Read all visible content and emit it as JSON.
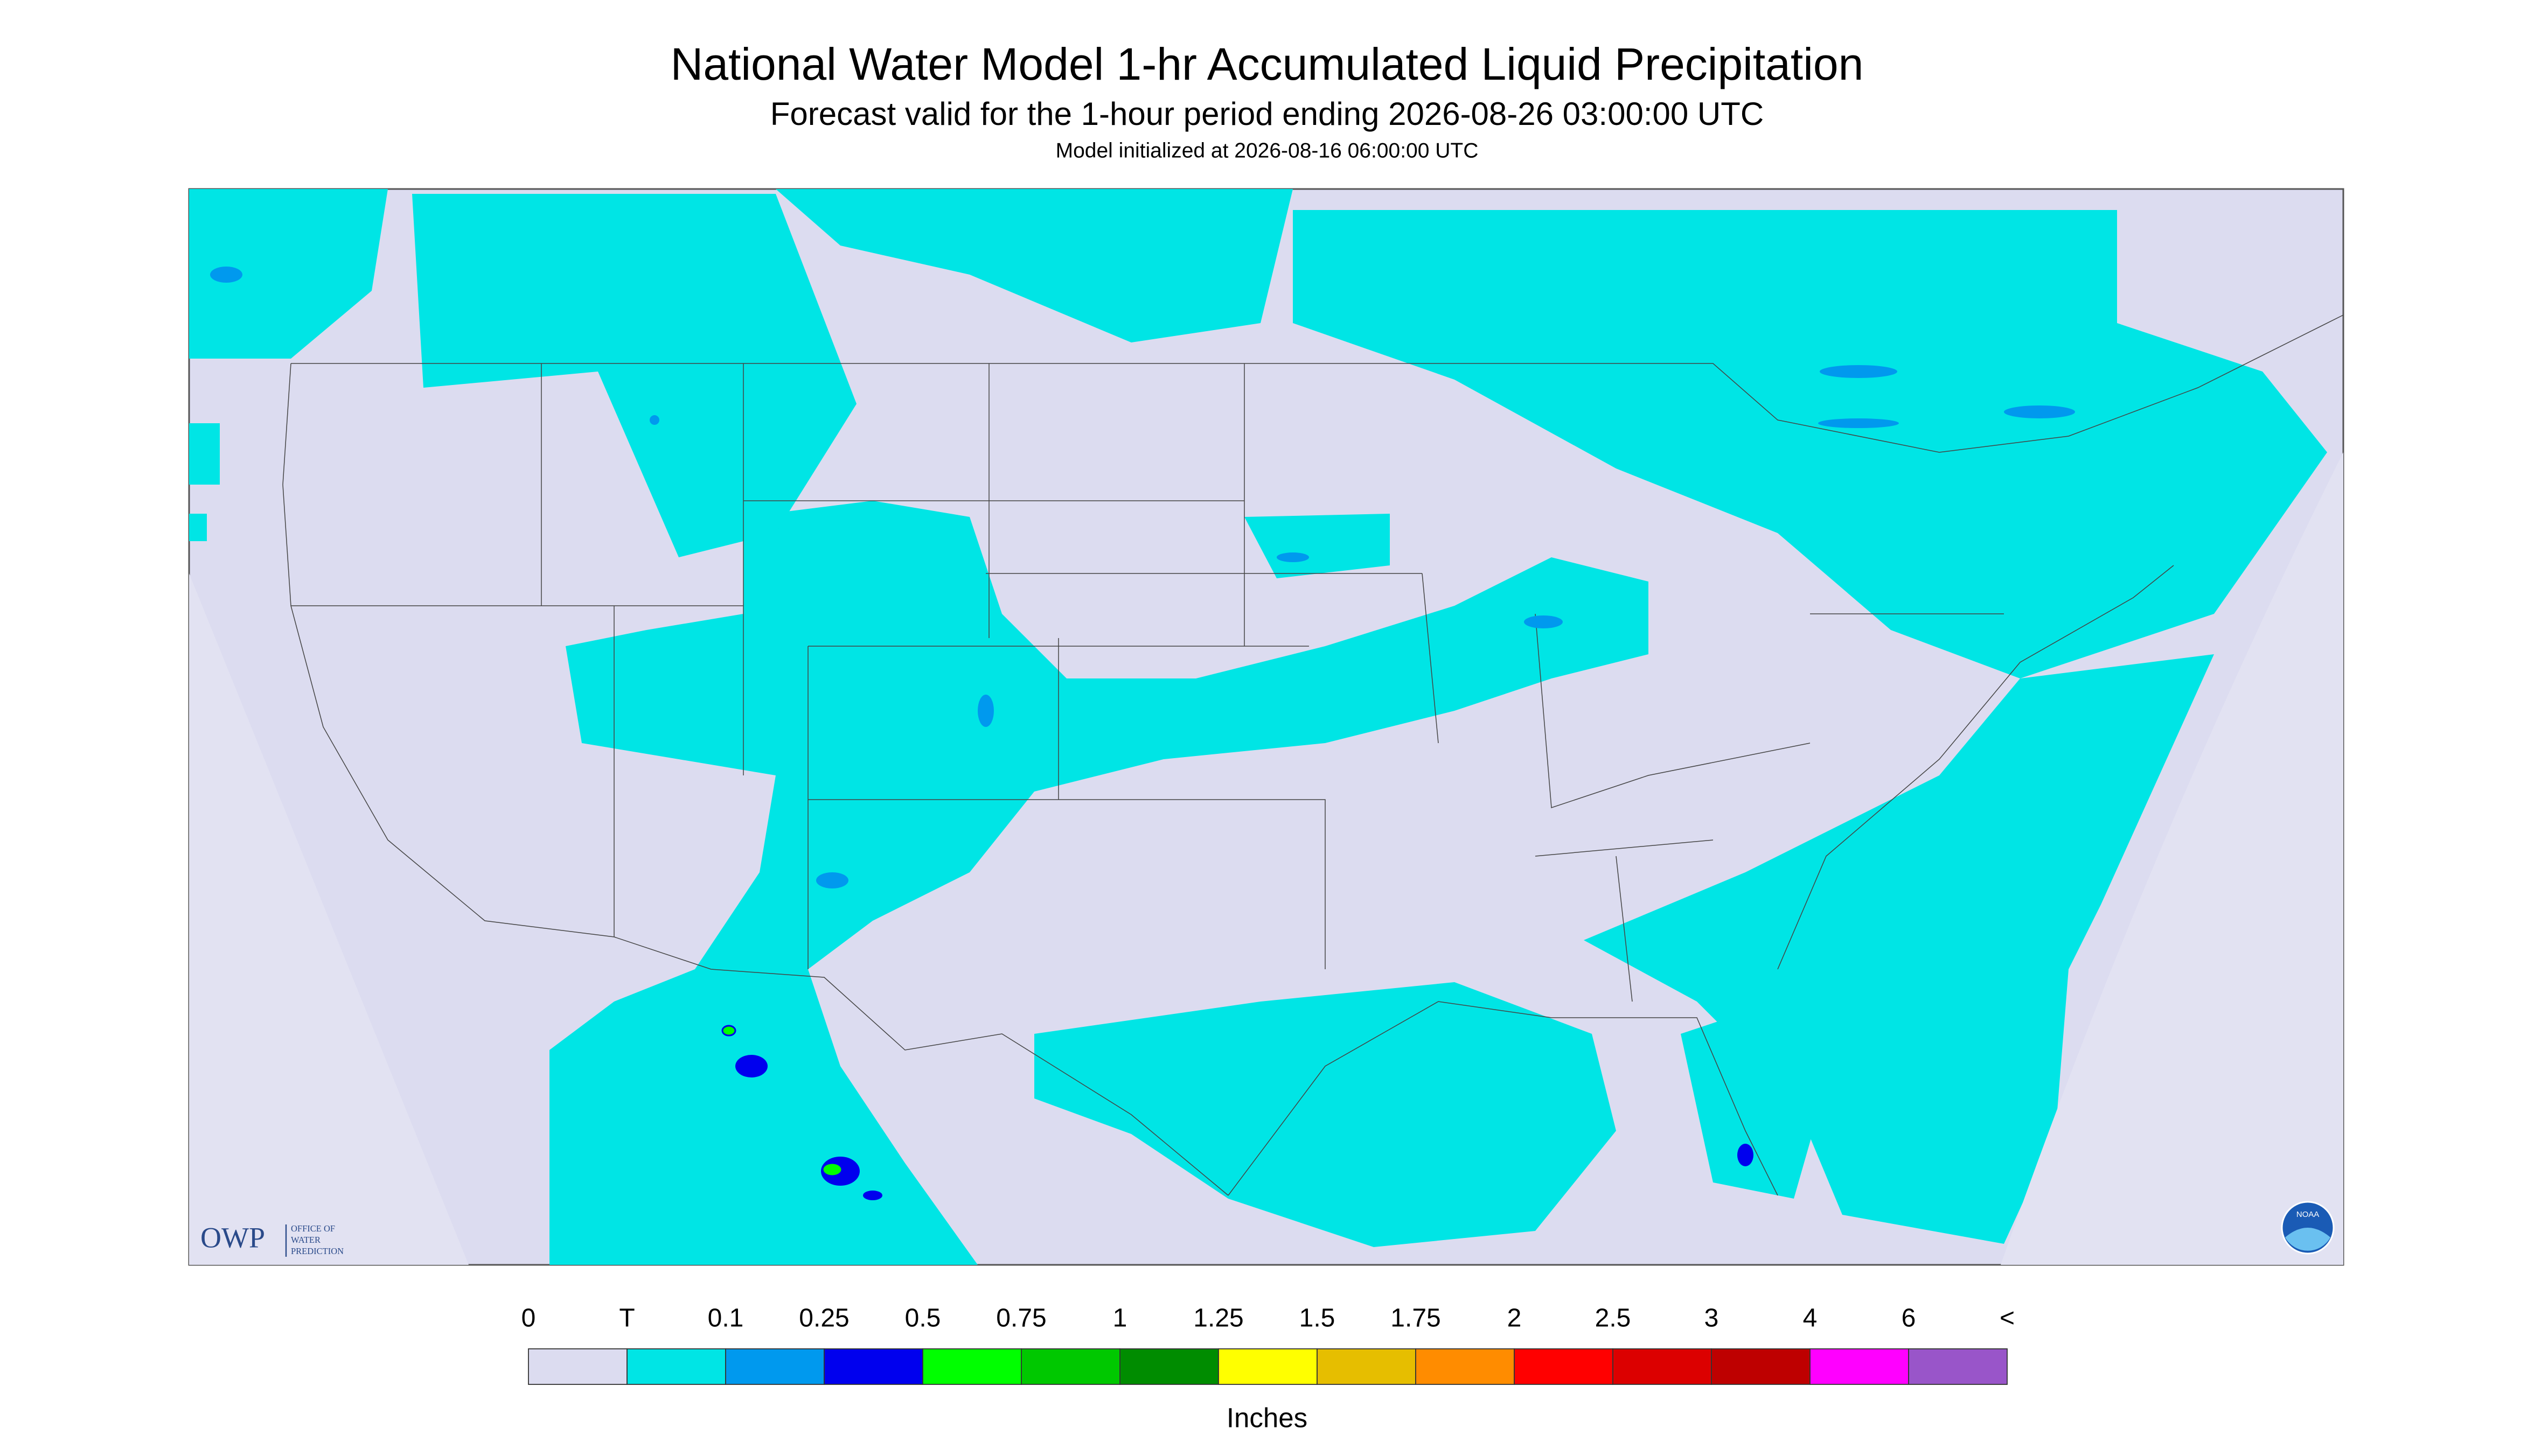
{
  "header": {
    "title": "National Water Model 1-hr Accumulated Liquid Precipitation",
    "subtitle": "Forecast valid for the 1-hour period ending 2026-08-26 03:00:00 UTC",
    "init": "Model initialized at 2026-08-16 06:00:00 UTC"
  },
  "legend": {
    "labels": [
      "0",
      "T",
      "0.1",
      "0.25",
      "0.5",
      "0.75",
      "1",
      "1.25",
      "1.5",
      "1.75",
      "2",
      "2.5",
      "3",
      "4",
      "6",
      "<"
    ],
    "colors": [
      "#dcdcf0",
      "#00e5e5",
      "#0099ee",
      "#0000ee",
      "#00ff00",
      "#00c800",
      "#008c00",
      "#ffff00",
      "#e6be00",
      "#ff8c00",
      "#ff0000",
      "#dc0000",
      "#be0000",
      "#ff00ff",
      "#9955c9"
    ],
    "unit": "Inches"
  },
  "logos": {
    "owp": "OWP",
    "owp_text": [
      "OFFICE OF",
      "WATER",
      "PREDICTION"
    ],
    "noaa": "NOAA"
  }
}
